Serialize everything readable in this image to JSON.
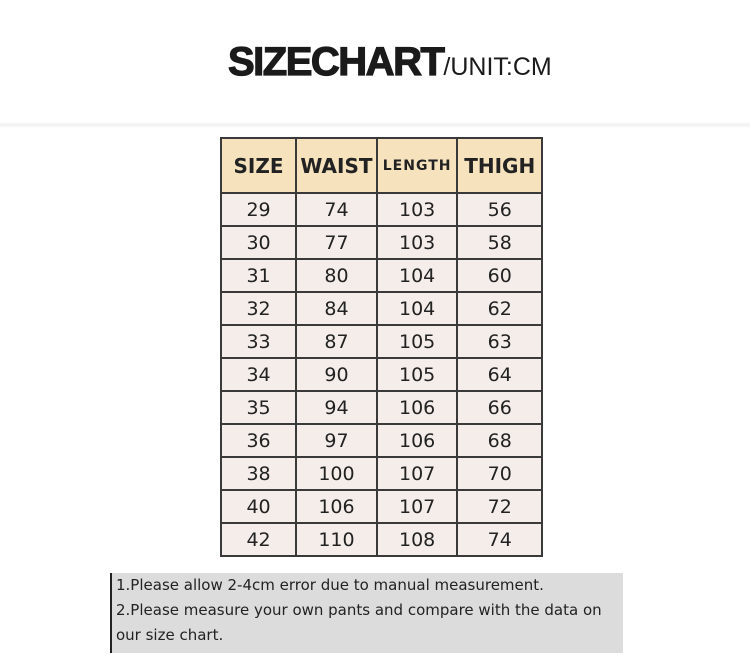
{
  "title": {
    "main": "SIZECHART",
    "unit": "/UNIT:CM"
  },
  "table": {
    "headers": [
      "SIZE",
      "WAIST",
      "LENGTH",
      "THIGH"
    ],
    "rows": [
      [
        "29",
        "74",
        "103",
        "56"
      ],
      [
        "30",
        "77",
        "103",
        "58"
      ],
      [
        "31",
        "80",
        "104",
        "60"
      ],
      [
        "32",
        "84",
        "104",
        "62"
      ],
      [
        "33",
        "87",
        "105",
        "63"
      ],
      [
        "34",
        "90",
        "105",
        "64"
      ],
      [
        "35",
        "94",
        "106",
        "66"
      ],
      [
        "36",
        "97",
        "106",
        "68"
      ],
      [
        "38",
        "100",
        "107",
        "70"
      ],
      [
        "40",
        "106",
        "107",
        "72"
      ],
      [
        "42",
        "110",
        "108",
        "74"
      ]
    ]
  },
  "notes": [
    "1.Please allow 2-4cm error due to manual measurement.",
    "2.Please measure your own pants and compare with the data on our size chart."
  ],
  "colors": {
    "header_bg": "#f6e3bd",
    "cell_bg": "#f4ede9",
    "notes_bg": "#dcdcdc"
  }
}
